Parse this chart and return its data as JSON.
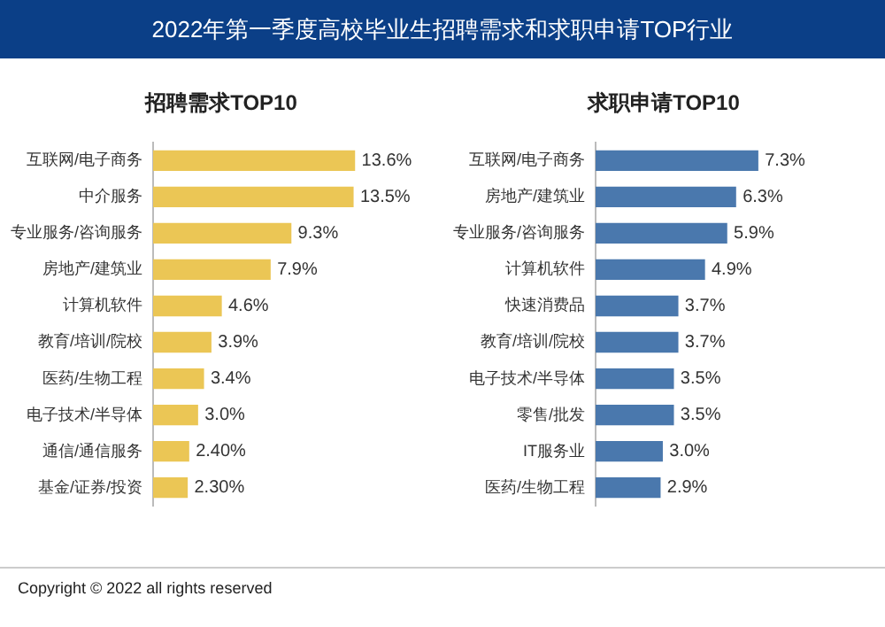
{
  "chart_data": [
    {
      "type": "bar",
      "orientation": "horizontal",
      "title": "招聘需求TOP10",
      "annotations": [
        "2022年第一季度高校毕业生招聘需求和求职申请TOP行业",
        "Copyright © 2022 all rights reserved"
      ],
      "categories": [
        "互联网/电子商务",
        "中介服务",
        "专业服务/咨询服务",
        "房地产/建筑业",
        "计算机软件",
        "教育/培训/院校",
        "医药/生物工程",
        "电子技术/半导体",
        "通信/通信服务",
        "基金/证券/投资"
      ],
      "values": [
        13.6,
        13.5,
        9.3,
        7.9,
        4.6,
        3.9,
        3.4,
        3.0,
        2.4,
        2.3
      ],
      "value_labels": [
        "13.6%",
        "13.5%",
        "9.3%",
        "7.9%",
        "4.6%",
        "3.9%",
        "3.4%",
        "3.0%",
        "2.40%",
        "2.30%"
      ],
      "color": "#ebc655",
      "grid": false,
      "legend": false,
      "tick_labels": "y"
    },
    {
      "type": "bar",
      "orientation": "horizontal",
      "title": "求职申请TOP10",
      "categories": [
        "互联网/电子商务",
        "房地产/建筑业",
        "专业服务/咨询服务",
        "计算机软件",
        "快速消费品",
        "教育/培训/院校",
        "电子技术/半导体",
        "零售/批发",
        "IT服务业",
        "医药/生物工程"
      ],
      "values": [
        7.3,
        6.3,
        5.9,
        4.9,
        3.7,
        3.7,
        3.5,
        3.5,
        3.0,
        2.9
      ],
      "value_labels": [
        "7.3%",
        "6.3%",
        "5.9%",
        "4.9%",
        "3.7%",
        "3.7%",
        "3.5%",
        "3.5%",
        "3.0%",
        "2.9%"
      ],
      "color": "#4a78ad",
      "grid": false,
      "legend": false,
      "tick_labels": "y"
    }
  ]
}
